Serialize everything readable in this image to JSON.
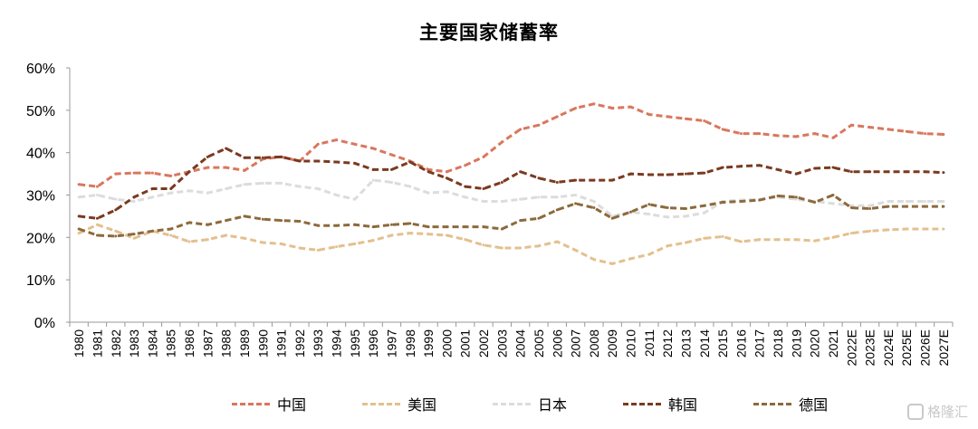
{
  "title": "主要国家储蓄率",
  "watermark": "格隆汇",
  "chart_data": {
    "type": "line",
    "title": "主要国家储蓄率",
    "xlabel": "",
    "ylabel": "",
    "ylim": [
      0,
      60
    ],
    "yticks": [
      "0%",
      "10%",
      "20%",
      "30%",
      "40%",
      "50%",
      "60%"
    ],
    "grid": false,
    "legend_position": "bottom",
    "categories": [
      "1980",
      "1981",
      "1982",
      "1983",
      "1984",
      "1985",
      "1986",
      "1987",
      "1988",
      "1989",
      "1990",
      "1991",
      "1992",
      "1993",
      "1994",
      "1995",
      "1996",
      "1997",
      "1998",
      "1999",
      "2000",
      "2001",
      "2002",
      "2003",
      "2004",
      "2005",
      "2006",
      "2007",
      "2008",
      "2009",
      "2010",
      "2011",
      "2012",
      "2013",
      "2014",
      "2015",
      "2016",
      "2017",
      "2018",
      "2019",
      "2020",
      "2021",
      "2022E",
      "2023E",
      "2024E",
      "2025E",
      "2026E",
      "2027E"
    ],
    "series": [
      {
        "name": "中国",
        "color": "#d9775e",
        "values": [
          32.5,
          32.0,
          35.0,
          35.2,
          35.2,
          34.5,
          35.5,
          36.5,
          36.5,
          35.8,
          38.5,
          39.0,
          38.0,
          42.0,
          43.0,
          42.0,
          41.0,
          39.5,
          38.0,
          36.0,
          35.5,
          37.0,
          39.0,
          42.5,
          45.5,
          46.5,
          48.5,
          50.5,
          51.5,
          50.5,
          50.8,
          49.0,
          48.5,
          48.0,
          47.5,
          45.5,
          44.5,
          44.5,
          44.0,
          43.8,
          44.5,
          43.5,
          46.5,
          46.0,
          45.5,
          45.0,
          44.5,
          44.3
        ]
      },
      {
        "name": "美国",
        "color": "#e3c08f",
        "values": [
          21.0,
          23.0,
          21.5,
          19.8,
          21.5,
          20.5,
          19.0,
          19.5,
          20.5,
          19.8,
          18.8,
          18.5,
          17.5,
          17.0,
          17.8,
          18.5,
          19.3,
          20.5,
          21.0,
          20.8,
          20.5,
          19.5,
          18.2,
          17.5,
          17.5,
          18.0,
          19.0,
          17.0,
          14.8,
          13.8,
          15.0,
          16.0,
          18.0,
          18.8,
          19.8,
          20.2,
          19.0,
          19.5,
          19.5,
          19.5,
          19.2,
          20.0,
          21.0,
          21.5,
          21.8,
          22.0,
          22.0,
          22.0
        ]
      },
      {
        "name": "日本",
        "color": "#dcdcdc",
        "values": [
          29.5,
          30.0,
          29.0,
          28.5,
          29.5,
          30.5,
          31.0,
          30.5,
          31.5,
          32.5,
          32.8,
          32.8,
          32.0,
          31.5,
          30.0,
          29.0,
          33.5,
          33.0,
          32.0,
          30.5,
          30.8,
          29.5,
          28.5,
          28.5,
          29.0,
          29.5,
          29.5,
          30.0,
          28.5,
          25.0,
          26.0,
          25.5,
          24.8,
          25.0,
          25.8,
          28.5,
          28.8,
          29.0,
          29.5,
          29.0,
          28.5,
          28.0,
          27.5,
          27.5,
          28.5,
          28.5,
          28.5,
          28.5
        ]
      },
      {
        "name": "韩国",
        "color": "#7a3a20",
        "values": [
          25.0,
          24.5,
          26.5,
          29.5,
          31.5,
          31.5,
          35.5,
          39.0,
          41.0,
          38.8,
          38.8,
          39.0,
          38.0,
          38.0,
          37.8,
          37.5,
          36.0,
          36.0,
          37.8,
          35.5,
          34.0,
          32.0,
          31.5,
          33.0,
          35.5,
          34.0,
          33.0,
          33.5,
          33.5,
          33.5,
          35.0,
          34.8,
          34.8,
          35.0,
          35.2,
          36.5,
          36.8,
          37.0,
          36.0,
          35.0,
          36.3,
          36.5,
          35.5,
          35.5,
          35.5,
          35.5,
          35.5,
          35.3
        ]
      },
      {
        "name": "德国",
        "color": "#8c6a3c",
        "values": [
          22.0,
          20.5,
          20.3,
          20.8,
          21.5,
          22.0,
          23.5,
          23.0,
          24.0,
          25.0,
          24.3,
          24.0,
          23.8,
          22.8,
          22.8,
          23.0,
          22.5,
          23.0,
          23.3,
          22.5,
          22.5,
          22.5,
          22.5,
          22.0,
          24.0,
          24.5,
          26.5,
          28.0,
          27.0,
          24.5,
          26.0,
          27.8,
          27.0,
          26.8,
          27.5,
          28.3,
          28.5,
          28.8,
          29.8,
          29.5,
          28.3,
          30.0,
          27.0,
          26.8,
          27.3,
          27.3,
          27.3,
          27.3
        ]
      }
    ]
  }
}
